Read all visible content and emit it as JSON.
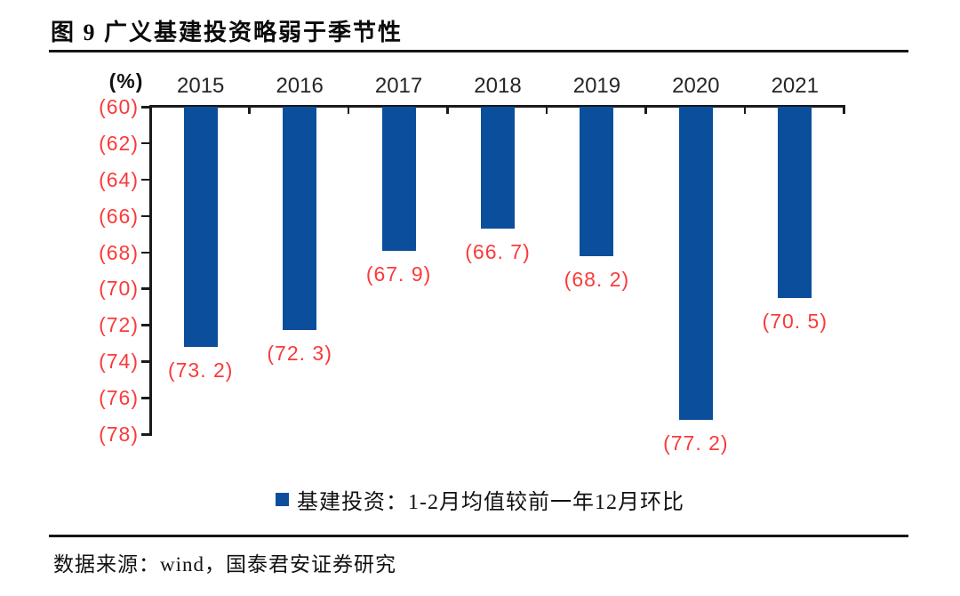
{
  "header": {
    "title": "图 9  广义基建投资略弱于季节性"
  },
  "chart_data": {
    "type": "bar",
    "title": "广义基建投资略弱于季节性",
    "y_unit": "(%)",
    "categories": [
      "2015",
      "2016",
      "2017",
      "2018",
      "2019",
      "2020",
      "2021"
    ],
    "values": [
      -73.2,
      -72.3,
      -67.9,
      -66.7,
      -68.2,
      -77.2,
      -70.5
    ],
    "display_values": [
      "(73. 2)",
      "(72. 3)",
      "(67. 9)",
      "(66. 7)",
      "(68. 2)",
      "(77. 2)",
      "(70. 5)"
    ],
    "y_ticks": [
      "(60)",
      "(62)",
      "(64)",
      "(66)",
      "(68)",
      "(70)",
      "(72)",
      "(74)",
      "(76)",
      "(78)"
    ],
    "y_tick_values": [
      60,
      62,
      64,
      66,
      68,
      70,
      72,
      74,
      76,
      78
    ],
    "ylim": [
      60,
      78
    ],
    "axis_note": "values are negative percentages shown in parentheses; axis inverted, bars hang from top",
    "grid": false,
    "legend": "基建投资：1-2月均值较前一年12月环比",
    "legend_position": "bottom",
    "bar_color": "#0B4F9C",
    "label_color": "#FA3A3A",
    "axis_color": "#1a1a1a"
  },
  "footer": {
    "source": "数据来源：wind，国泰君安证券研究"
  }
}
